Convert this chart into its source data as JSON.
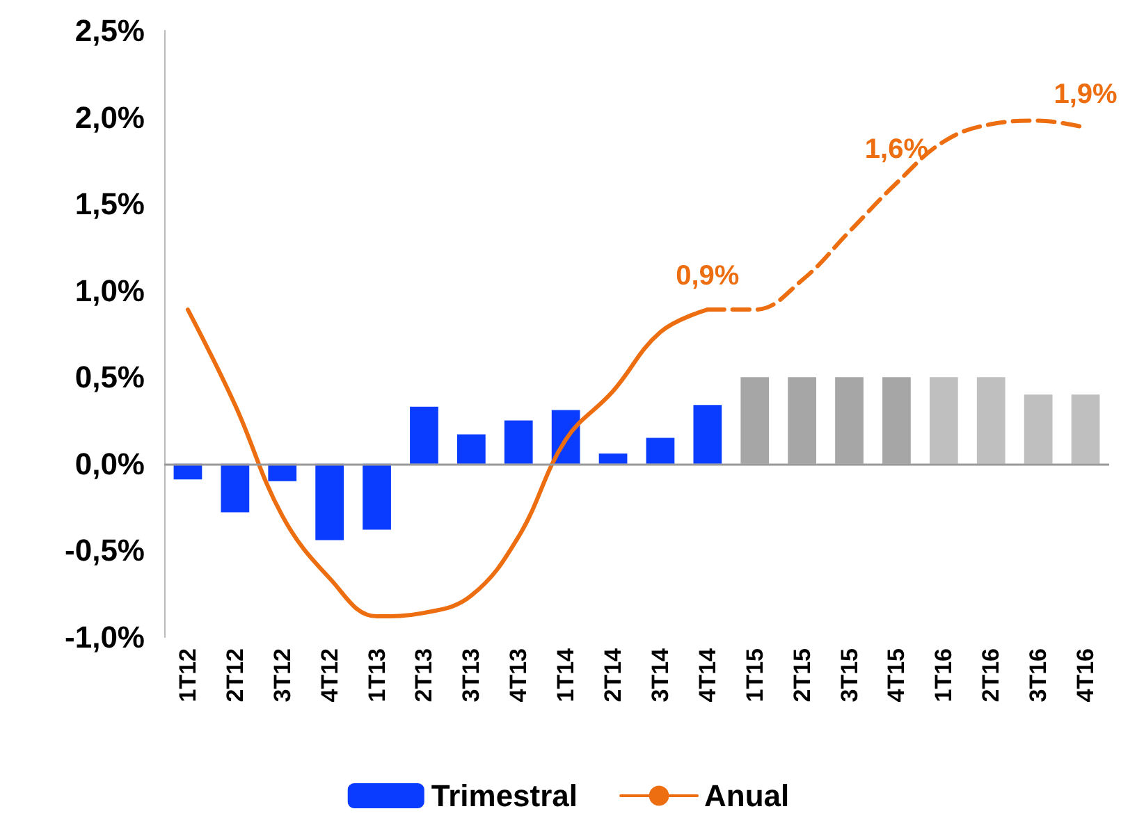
{
  "chart_data": {
    "type": "bar",
    "categories": [
      "1T12",
      "2T12",
      "3T12",
      "4T12",
      "1T13",
      "2T13",
      "3T13",
      "4T13",
      "1T14",
      "2T14",
      "3T14",
      "4T14",
      "1T15",
      "2T15",
      "3T15",
      "4T15",
      "1T16",
      "2T16",
      "3T16",
      "4T16"
    ],
    "series": [
      {
        "name": "Trimestral",
        "color": "#0a3cff",
        "colors": [
          "#0a3cff",
          "#0a3cff",
          "#0a3cff",
          "#0a3cff",
          "#0a3cff",
          "#0a3cff",
          "#0a3cff",
          "#0a3cff",
          "#0a3cff",
          "#0a3cff",
          "#0a3cff",
          "#0a3cff",
          "#a6a6a6",
          "#a6a6a6",
          "#a6a6a6",
          "#a6a6a6",
          "#bfbfbf",
          "#bfbfbf",
          "#bfbfbf",
          "#bfbfbf"
        ],
        "values": [
          -0.09,
          -0.28,
          -0.1,
          -0.44,
          -0.38,
          0.33,
          0.17,
          0.25,
          0.31,
          0.06,
          0.15,
          0.34,
          0.5,
          0.5,
          0.5,
          0.5,
          0.5,
          0.5,
          0.4,
          0.4
        ]
      },
      {
        "name": "Anual",
        "type": "line",
        "line_style": "solid",
        "color": "#ed6e10",
        "values": [
          0.89,
          0.34,
          -0.3,
          -0.66,
          -0.88,
          -0.86,
          -0.76,
          -0.42,
          0.14,
          0.42,
          0.76,
          0.89,
          null,
          null,
          null,
          null,
          null,
          null,
          null,
          null
        ],
        "value_labels": [
          null,
          null,
          null,
          null,
          null,
          null,
          null,
          null,
          null,
          null,
          null,
          "0,9%",
          null,
          null,
          null,
          null,
          null,
          null,
          null,
          null
        ]
      },
      {
        "type": "line",
        "line_style": "dashed",
        "color": "#ed6e10",
        "values": [
          null,
          null,
          null,
          null,
          null,
          null,
          null,
          null,
          null,
          null,
          null,
          0.89,
          0.89,
          1.06,
          1.34,
          1.62,
          1.86,
          1.96,
          1.98,
          1.94
        ],
        "value_labels": [
          null,
          null,
          null,
          null,
          null,
          null,
          null,
          null,
          null,
          null,
          null,
          null,
          null,
          null,
          null,
          "1,6%",
          null,
          null,
          null,
          "1,9%"
        ]
      }
    ],
    "ylim": [
      -1,
      2.5
    ],
    "yticks": [
      {
        "value": -1,
        "label": "-1,0%"
      },
      {
        "value": -0.5,
        "label": "-0,5%"
      },
      {
        "value": 0,
        "label": "0,0%"
      },
      {
        "value": 0.5,
        "label": "0,5%"
      },
      {
        "value": 1,
        "label": "1,0%"
      },
      {
        "value": 1.5,
        "label": "1,5%"
      },
      {
        "value": 2,
        "label": "2,0%"
      },
      {
        "value": 2.5,
        "label": "2,5%"
      }
    ],
    "ref_lines": [
      {
        "axis": "y",
        "value": 0,
        "color": "#999999"
      }
    ],
    "grid": false,
    "legend": "bottom",
    "marker": "none"
  }
}
